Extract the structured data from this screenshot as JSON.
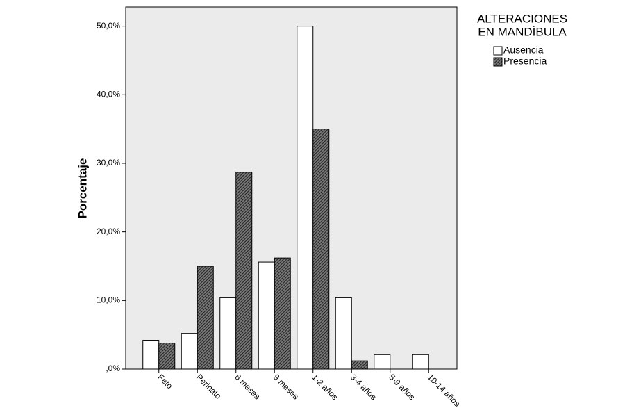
{
  "chart_data": {
    "type": "bar",
    "y_label": "Porcentaje",
    "legend_title": [
      "ALTERACIONES",
      "EN MANDÍBULA"
    ],
    "categories": [
      "Feto",
      "Perinato",
      "6 meses",
      "9 meses",
      "1-2 años",
      "3-4 años",
      "5-9 años",
      "10-14 años"
    ],
    "series": [
      {
        "name": "Ausencia",
        "color": "#ffffff",
        "hatch": false,
        "values": [
          4.2,
          5.2,
          10.4,
          15.6,
          50.0,
          10.4,
          2.1,
          2.1
        ]
      },
      {
        "name": "Presencia",
        "color": "#3a3a3a",
        "hatch": true,
        "values": [
          3.8,
          15.0,
          28.7,
          16.2,
          35.0,
          1.2,
          0,
          0
        ]
      }
    ],
    "ylim": [
      0,
      52.8
    ],
    "yticks": [
      {
        "value": 0,
        "label": ",0%"
      },
      {
        "value": 10,
        "label": "10,0%"
      },
      {
        "value": 20,
        "label": "20,0%"
      },
      {
        "value": 30,
        "label": "30,0%"
      },
      {
        "value": 40,
        "label": "40,0%"
      },
      {
        "value": 50,
        "label": "50,0%"
      }
    ],
    "grid": false
  }
}
